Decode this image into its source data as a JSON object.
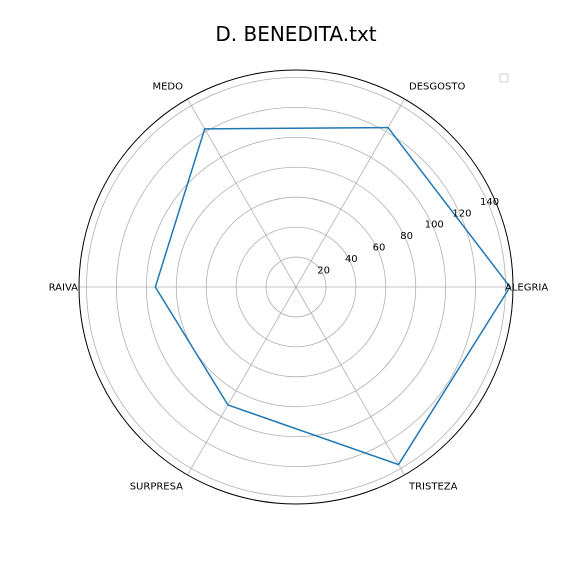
{
  "chart_data": {
    "type": "radar",
    "title": "D. BENEDITA.txt",
    "categories": [
      "ALEGRIA",
      "DESGOSTO",
      "MEDO",
      "RAIVA",
      "SURPRESA",
      "TRISTEZA"
    ],
    "values": [
      143,
      123,
      122,
      94,
      91,
      137
    ],
    "rlim": [
      0,
      145
    ],
    "rticks": [
      20,
      40,
      60,
      80,
      100,
      120,
      140
    ],
    "grid": true,
    "legend": "top-right",
    "colors": {
      "series": "#1f77b4",
      "grid": "#b0b0b0",
      "frame": "#000000"
    }
  }
}
